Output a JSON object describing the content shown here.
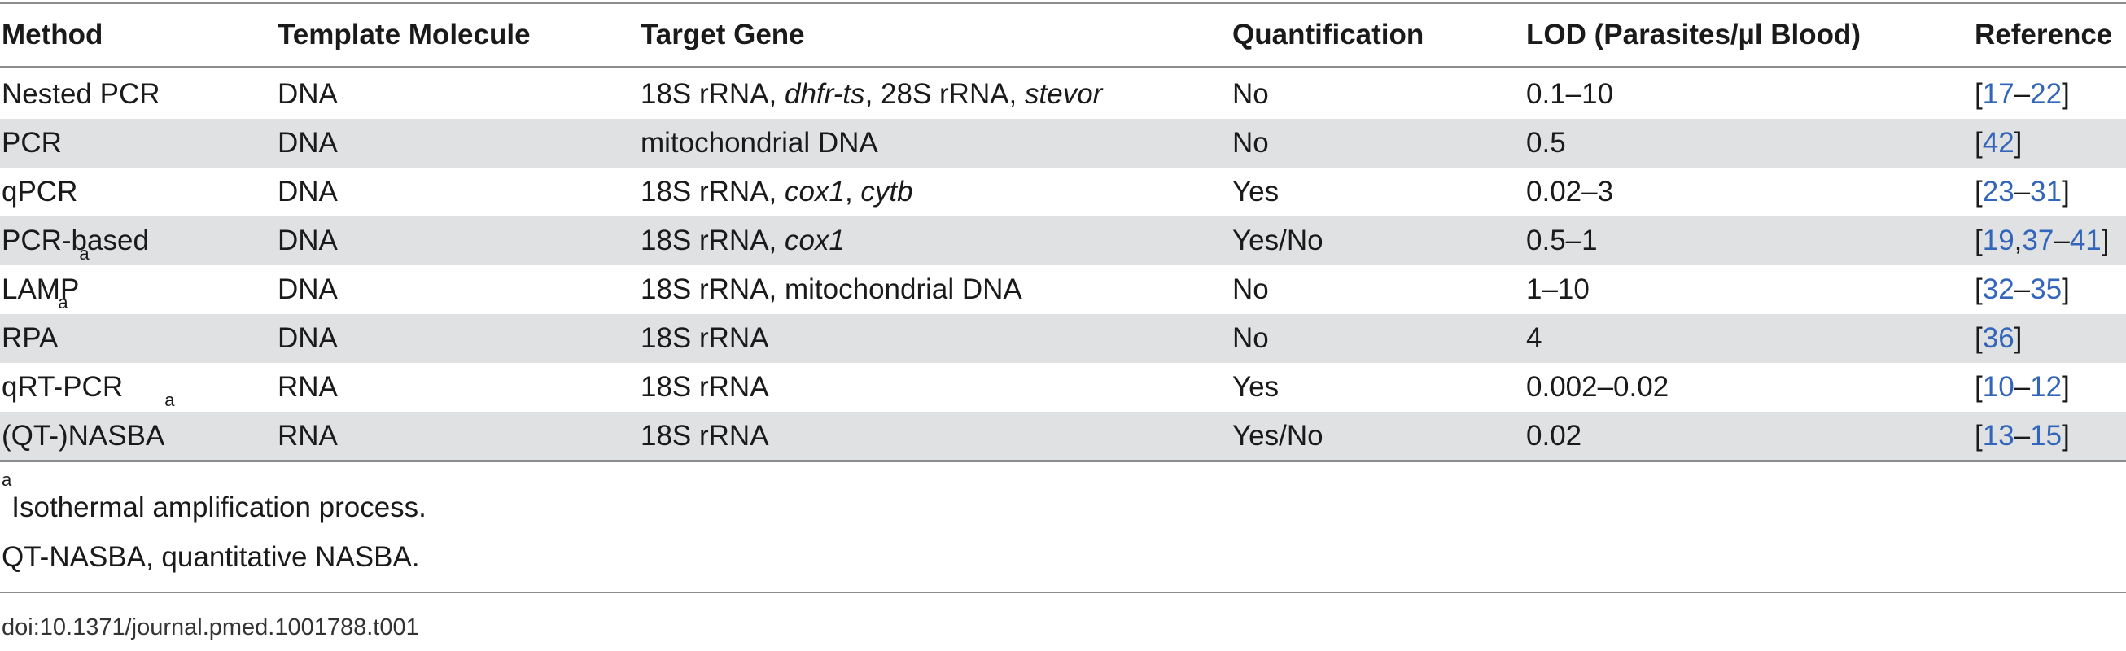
{
  "table": {
    "headers": {
      "method": "Method",
      "template": "Template Molecule",
      "target": "Target Gene",
      "quant": "Quantification",
      "lod": "LOD (Parasites/µl Blood)",
      "reference": "Reference"
    },
    "rows": [
      {
        "method": "Nested PCR",
        "method_sup": "",
        "template": "DNA",
        "target": [
          {
            "text": "18S rRNA, ",
            "italic": false
          },
          {
            "text": "dhfr-ts",
            "italic": true
          },
          {
            "text": ", 28S rRNA, ",
            "italic": false
          },
          {
            "text": "stevor",
            "italic": true
          }
        ],
        "quant": "No",
        "lod": "0.1–10",
        "reference": [
          {
            "text": "[",
            "link": false
          },
          {
            "text": "17",
            "link": true
          },
          {
            "text": "–",
            "link": false
          },
          {
            "text": "22",
            "link": true
          },
          {
            "text": "]",
            "link": false
          }
        ]
      },
      {
        "method": "PCR",
        "method_sup": "",
        "template": "DNA",
        "target": [
          {
            "text": "mitochondrial DNA",
            "italic": false
          }
        ],
        "quant": "No",
        "lod": "0.5",
        "reference": [
          {
            "text": "[",
            "link": false
          },
          {
            "text": "42",
            "link": true
          },
          {
            "text": "]",
            "link": false
          }
        ]
      },
      {
        "method": "qPCR",
        "method_sup": "",
        "template": "DNA",
        "target": [
          {
            "text": "18S rRNA, ",
            "italic": false
          },
          {
            "text": "cox1",
            "italic": true
          },
          {
            "text": ", ",
            "italic": false
          },
          {
            "text": "cytb",
            "italic": true
          }
        ],
        "quant": "Yes",
        "lod": "0.02–3",
        "reference": [
          {
            "text": "[",
            "link": false
          },
          {
            "text": "23",
            "link": true
          },
          {
            "text": "–",
            "link": false
          },
          {
            "text": "31",
            "link": true
          },
          {
            "text": "]",
            "link": false
          }
        ]
      },
      {
        "method": "PCR-based",
        "method_sup": "",
        "template": "DNA",
        "target": [
          {
            "text": "18S rRNA, ",
            "italic": false
          },
          {
            "text": "cox1",
            "italic": true
          }
        ],
        "quant": "Yes/No",
        "lod": "0.5–1",
        "reference": [
          {
            "text": "[",
            "link": false
          },
          {
            "text": "19",
            "link": true
          },
          {
            "text": ",",
            "link": false
          },
          {
            "text": "37",
            "link": true
          },
          {
            "text": "–",
            "link": false
          },
          {
            "text": "41",
            "link": true
          },
          {
            "text": "]",
            "link": false
          }
        ]
      },
      {
        "method": "LAMP",
        "method_sup": "a",
        "template": "DNA",
        "target": [
          {
            "text": "18S rRNA, mitochondrial DNA",
            "italic": false
          }
        ],
        "quant": "No",
        "lod": "1–10",
        "reference": [
          {
            "text": "[",
            "link": false
          },
          {
            "text": "32",
            "link": true
          },
          {
            "text": "–",
            "link": false
          },
          {
            "text": "35",
            "link": true
          },
          {
            "text": "]",
            "link": false
          }
        ]
      },
      {
        "method": "RPA",
        "method_sup": "a",
        "template": "DNA",
        "target": [
          {
            "text": "18S rRNA",
            "italic": false
          }
        ],
        "quant": "No",
        "lod": "4",
        "reference": [
          {
            "text": "[",
            "link": false
          },
          {
            "text": "36",
            "link": true
          },
          {
            "text": "]",
            "link": false
          }
        ]
      },
      {
        "method": "qRT-PCR",
        "method_sup": "",
        "template": "RNA",
        "target": [
          {
            "text": "18S rRNA",
            "italic": false
          }
        ],
        "quant": "Yes",
        "lod": "0.002–0.02",
        "reference": [
          {
            "text": "[",
            "link": false
          },
          {
            "text": "10",
            "link": true
          },
          {
            "text": "–",
            "link": false
          },
          {
            "text": "12",
            "link": true
          },
          {
            "text": "]",
            "link": false
          }
        ]
      },
      {
        "method": "(QT-)NASBA",
        "method_sup": "a",
        "template": "RNA",
        "target": [
          {
            "text": "18S rRNA",
            "italic": false
          }
        ],
        "quant": "Yes/No",
        "lod": "0.02",
        "reference": [
          {
            "text": "[",
            "link": false
          },
          {
            "text": "13",
            "link": true
          },
          {
            "text": "–",
            "link": false
          },
          {
            "text": "15",
            "link": true
          },
          {
            "text": "]",
            "link": false
          }
        ]
      }
    ]
  },
  "footnotes": {
    "note_a_marker": "a",
    "note_a_text": "Isothermal amplification process.",
    "abbrev": "QT-NASBA, quantitative NASBA."
  },
  "doi": "doi:10.1371/journal.pmed.1001788.t001",
  "colors": {
    "link": "#3366bb",
    "row_shade": "#e0e1e3",
    "rule": "#8c8c8c"
  }
}
